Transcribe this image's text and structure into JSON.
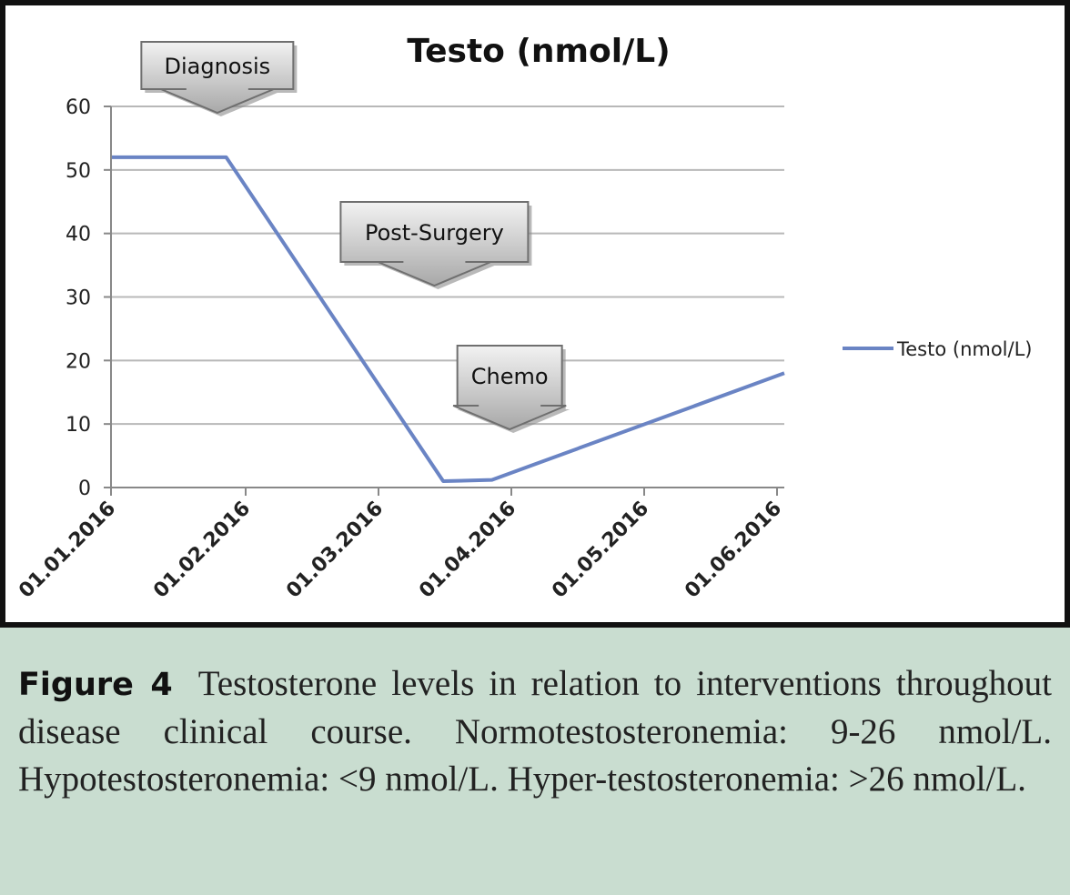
{
  "chart_data": {
    "type": "line",
    "title": "Testo (nmol/L)",
    "xlabel": "",
    "ylabel": "",
    "x_tick_labels": [
      "01.01.2016",
      "01.02.2016",
      "01.03.2016",
      "01.04.2016",
      "01.05.2016",
      "01.06.2016"
    ],
    "y_ticks": [
      0,
      10,
      20,
      30,
      40,
      50,
      60
    ],
    "ylim": [
      0,
      60
    ],
    "x_range_days": [
      0,
      152
    ],
    "grid": "horizontal",
    "legend": "right",
    "series": [
      {
        "name": "Testo (nmol/L)",
        "color": "#6a84c4",
        "points": [
          {
            "x_label": "01.01.2016",
            "day": 0,
            "y": 52
          },
          {
            "x_label": "27.01.2016",
            "day": 26,
            "y": 52
          },
          {
            "x_label": "16.03.2016",
            "day": 75,
            "y": 1
          },
          {
            "x_label": "27.03.2016",
            "day": 86,
            "y": 1.2
          },
          {
            "x_label": "01.06.2016",
            "day": 152,
            "y": 18
          }
        ]
      }
    ],
    "annotations": [
      {
        "label": "Diagnosis",
        "day": 24
      },
      {
        "label": "Post-Surgery",
        "day": 73
      },
      {
        "label": "Chemo",
        "day": 90
      }
    ]
  },
  "caption": {
    "label": "Figure 4",
    "text": "Testosterone levels in relation to interventions throughout disease clinical course. Normotestosteronemia: 9-26 nmol/L. Hypotestosteronemia: <9 nmol/L. Hyper-testosteronemia: >26 nmol/L."
  }
}
